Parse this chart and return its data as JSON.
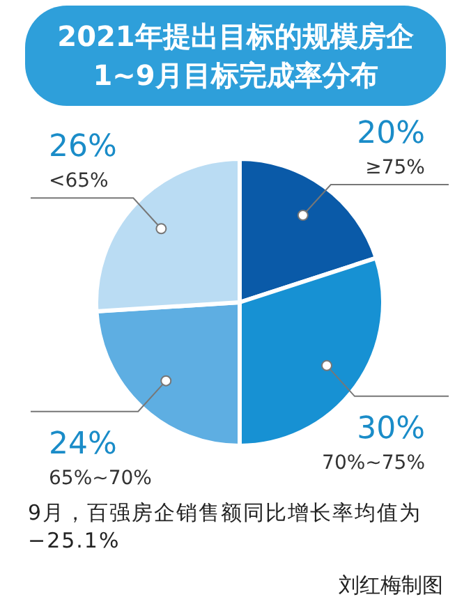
{
  "chart_data": {
    "type": "pie",
    "title": "2021年提出目标的规模房企\n1~9月目标完成率分布",
    "categories": [
      "≥75%",
      "70%~75%",
      "65%~70%",
      "<65%"
    ],
    "values": [
      20,
      30,
      24,
      26
    ],
    "value_labels": [
      "20%",
      "30%",
      "24%",
      "26%"
    ],
    "colors": [
      "#0a5aa8",
      "#1791d3",
      "#5eaee2",
      "#badcf3"
    ],
    "annotations": [
      "9月，百强房企销售额同比增长率均值为−25.1%",
      "刘红梅制图"
    ]
  }
}
